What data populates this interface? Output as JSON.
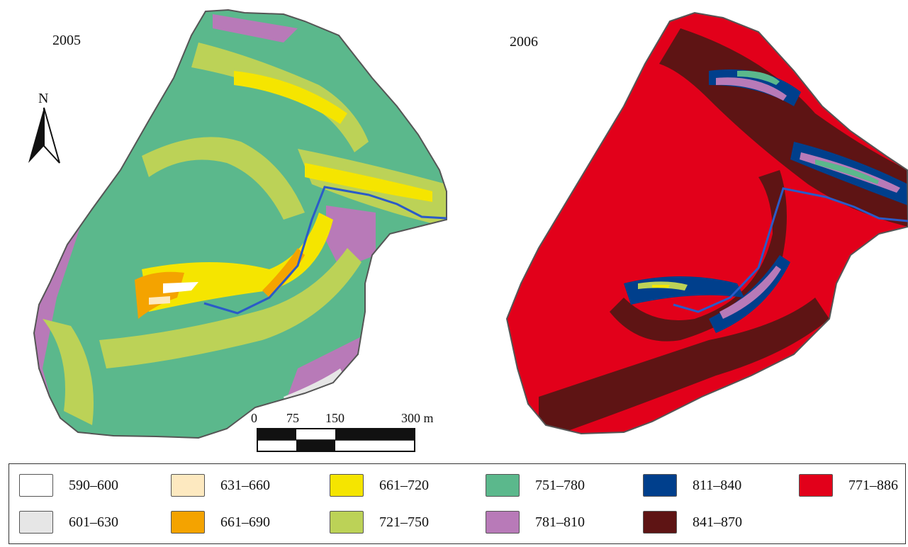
{
  "maps": [
    {
      "year": "2005"
    },
    {
      "year": "2006"
    }
  ],
  "north_label": "N",
  "scale": {
    "ticks": [
      "0",
      "75",
      "150",
      "300 m"
    ]
  },
  "colors": {
    "c590_600": "#ffffff",
    "c601_630": "#e6e6e6",
    "c631_660": "#fde9c0",
    "c661_690": "#f4a300",
    "c661_720": "#f5e500",
    "c721_750": "#bcd257",
    "c751_780": "#5bb88c",
    "c781_810": "#b87ab8",
    "c811_840": "#003f8c",
    "c841_870": "#5e1414",
    "c771_886": "#e2001a",
    "river": "#2a5bc8"
  },
  "legend": [
    {
      "label": "590–600",
      "color": "#ffffff"
    },
    {
      "label": "631–660",
      "color": "#fde9c0"
    },
    {
      "label": "661–720",
      "color": "#f5e500"
    },
    {
      "label": "751–780",
      "color": "#5bb88c"
    },
    {
      "label": "811–840",
      "color": "#003f8c"
    },
    {
      "label": "771–886",
      "color": "#e2001a"
    },
    {
      "label": "601–630",
      "color": "#e6e6e6"
    },
    {
      "label": "661–690",
      "color": "#f4a300"
    },
    {
      "label": "721–750",
      "color": "#bcd257"
    },
    {
      "label": "781–810",
      "color": "#b87ab8"
    },
    {
      "label": "841–870",
      "color": "#5e1414"
    }
  ]
}
